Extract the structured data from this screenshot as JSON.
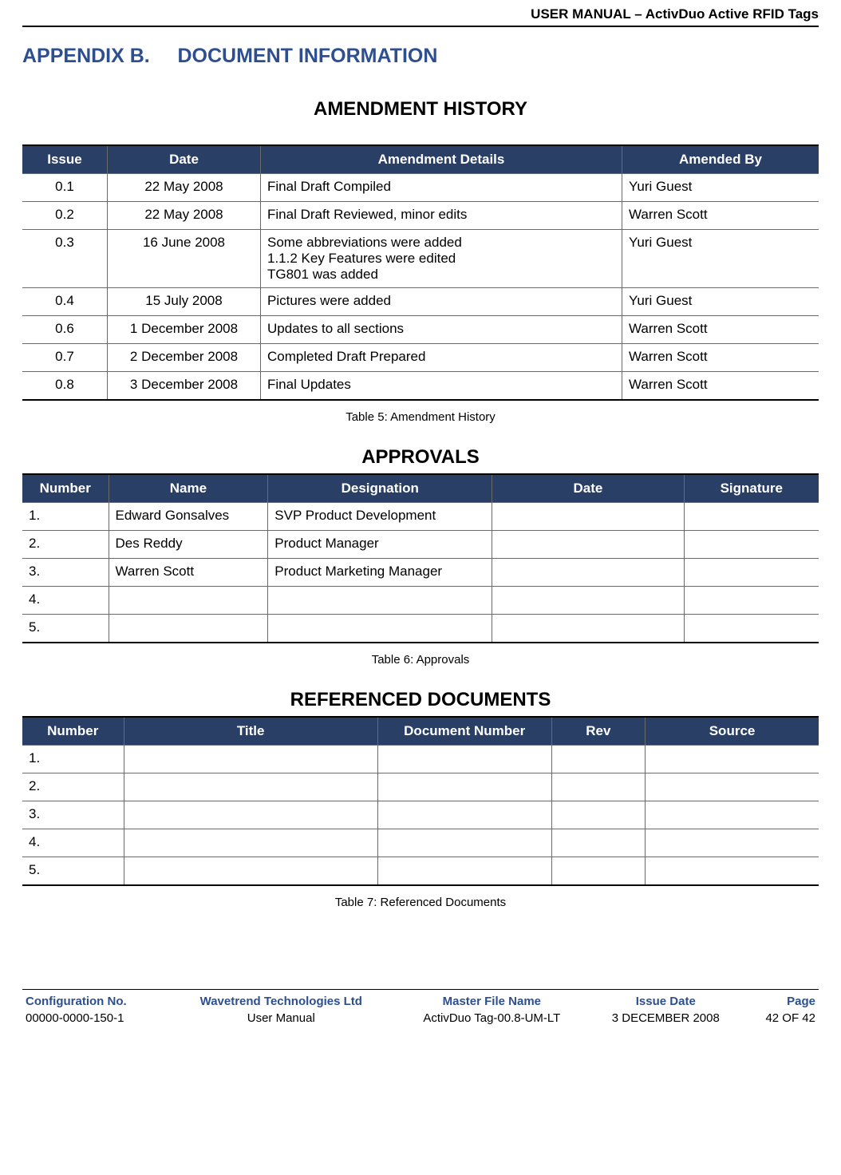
{
  "header": {
    "running_title": "USER MANUAL – ActivDuo Active RFID Tags"
  },
  "appendix": {
    "label": "APPENDIX B.",
    "title": "DOCUMENT INFORMATION"
  },
  "amendment": {
    "heading": "AMENDMENT HISTORY",
    "columns": [
      "Issue",
      "Date",
      "Amendment Details",
      "Amended By"
    ],
    "rows": [
      {
        "issue": "0.1",
        "date": "22 May 2008",
        "details": "Final Draft Compiled",
        "by": "Yuri Guest"
      },
      {
        "issue": "0.2",
        "date": "22 May 2008",
        "details": "Final Draft Reviewed, minor edits",
        "by": "Warren Scott"
      },
      {
        "issue": "0.3",
        "date": "16 June 2008",
        "details": "Some abbreviations were added\n1.1.2 Key Features were edited\nTG801 was added",
        "by": "Yuri Guest"
      },
      {
        "issue": "0.4",
        "date": "15 July 2008",
        "details": "Pictures were added",
        "by": "Yuri Guest"
      },
      {
        "issue": "0.6",
        "date": "1 December 2008",
        "details": "Updates to all sections",
        "by": "Warren Scott"
      },
      {
        "issue": "0.7",
        "date": "2 December 2008",
        "details": "Completed Draft Prepared",
        "by": "Warren Scott"
      },
      {
        "issue": "0.8",
        "date": "3 December 2008",
        "details": "Final Updates",
        "by": "Warren Scott"
      }
    ],
    "caption": "Table 5: Amendment History"
  },
  "approvals": {
    "heading": "APPROVALS",
    "columns": [
      "Number",
      "Name",
      "Designation",
      "Date",
      "Signature"
    ],
    "rows": [
      {
        "num": "1.",
        "name": "Edward Gonsalves",
        "desig": "SVP Product Development",
        "date": "",
        "sig": ""
      },
      {
        "num": "2.",
        "name": "Des Reddy",
        "desig": "Product Manager",
        "date": "",
        "sig": ""
      },
      {
        "num": "3.",
        "name": "Warren Scott",
        "desig": "Product Marketing Manager",
        "date": "",
        "sig": ""
      },
      {
        "num": "4.",
        "name": "",
        "desig": "",
        "date": "",
        "sig": ""
      },
      {
        "num": "5.",
        "name": "",
        "desig": "",
        "date": "",
        "sig": ""
      }
    ],
    "caption": "Table 6: Approvals"
  },
  "referenced": {
    "heading": "REFERENCED DOCUMENTS",
    "columns": [
      "Number",
      "Title",
      "Document Number",
      "Rev",
      "Source"
    ],
    "rows": [
      {
        "num": "1.",
        "title": "",
        "docnum": "",
        "rev": "",
        "src": ""
      },
      {
        "num": "2.",
        "title": "",
        "docnum": "",
        "rev": "",
        "src": ""
      },
      {
        "num": "3.",
        "title": "",
        "docnum": "",
        "rev": "",
        "src": ""
      },
      {
        "num": "4.",
        "title": "",
        "docnum": "",
        "rev": "",
        "src": ""
      },
      {
        "num": "5.",
        "title": "",
        "docnum": "",
        "rev": "",
        "src": ""
      }
    ],
    "caption": "Table 7: Referenced Documents"
  },
  "footer": {
    "labels": [
      "Configuration No.",
      "Wavetrend Technologies Ltd",
      "Master File Name",
      "Issue Date",
      "Page"
    ],
    "values": [
      "00000-0000-150-1",
      "User Manual",
      "ActivDuo Tag-00.8-UM-LT",
      "3 DECEMBER 2008",
      "42 OF 42"
    ]
  },
  "colors": {
    "heading_blue": "#2d4f8f",
    "table_header_bg": "#2a3f66",
    "table_header_fg": "#ffffff",
    "border_color": "#6a6a6a",
    "black": "#000000",
    "white": "#ffffff"
  }
}
